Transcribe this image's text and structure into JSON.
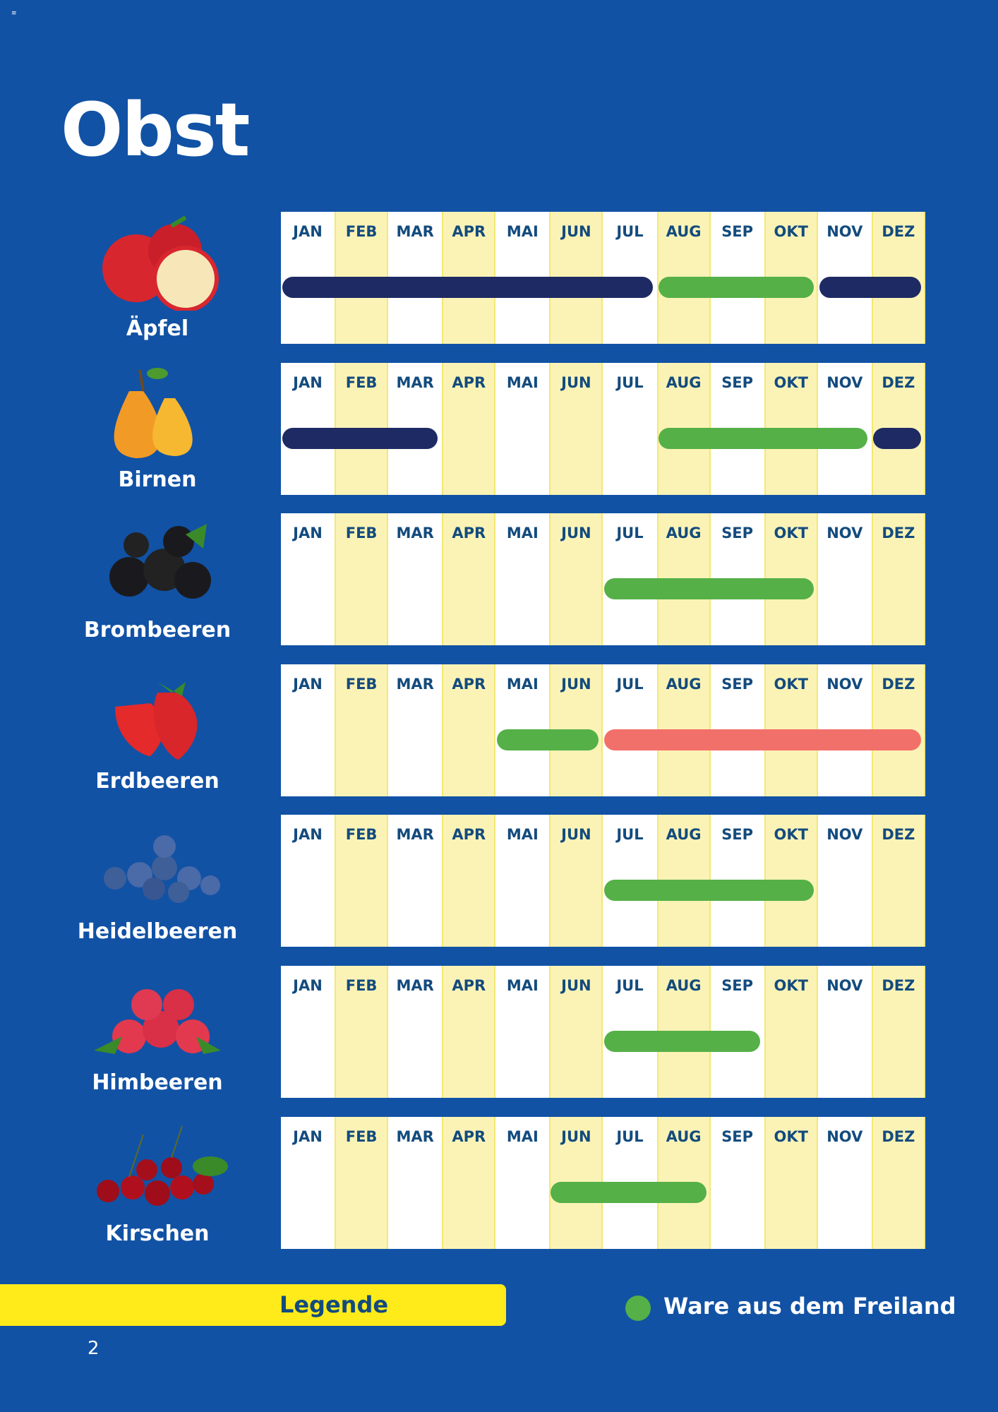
{
  "menu_icon": "hamburger-icon",
  "title": "Obst",
  "colors": {
    "background": "#1152a5",
    "freiland": "#55b047",
    "navy": "#1e2a63",
    "red": "#f2706a",
    "column_alt": "#fbf3b6",
    "legend_bar": "#ffeb1a"
  },
  "chart_data": {
    "type": "table",
    "title": "Obst",
    "months": [
      "JAN",
      "FEB",
      "MAR",
      "APR",
      "MAI",
      "JUN",
      "JUL",
      "AUG",
      "SEP",
      "OKT",
      "NOV",
      "DEZ"
    ],
    "rows": [
      {
        "name": "Äpfel",
        "icon": "apple",
        "bars": [
          {
            "start": "JAN",
            "end": "JUL",
            "color": "#1e2a63"
          },
          {
            "start": "AUG",
            "end": "OKT",
            "color": "#55b047"
          },
          {
            "start": "NOV",
            "end": "DEZ",
            "color": "#1e2a63"
          }
        ]
      },
      {
        "name": "Birnen",
        "icon": "pear",
        "bars": [
          {
            "start": "JAN",
            "end": "MAR",
            "color": "#1e2a63"
          },
          {
            "start": "AUG",
            "end": "NOV",
            "color": "#55b047"
          },
          {
            "start": "DEZ",
            "end": "DEZ",
            "color": "#1e2a63"
          }
        ]
      },
      {
        "name": "Brombeeren",
        "icon": "blackberry",
        "bars": [
          {
            "start": "JUL",
            "end": "OKT",
            "color": "#55b047"
          }
        ]
      },
      {
        "name": "Erdbeeren",
        "icon": "strawberry",
        "bars": [
          {
            "start": "MAI",
            "end": "JUN",
            "color": "#55b047"
          },
          {
            "start": "JUL",
            "end": "DEZ",
            "color": "#f2706a"
          }
        ]
      },
      {
        "name": "Heidelbeeren",
        "icon": "blueberry",
        "bars": [
          {
            "start": "JUL",
            "end": "OKT",
            "color": "#55b047"
          }
        ]
      },
      {
        "name": "Himbeeren",
        "icon": "raspberry",
        "bars": [
          {
            "start": "JUL",
            "end": "SEP",
            "color": "#55b047"
          }
        ]
      },
      {
        "name": "Kirschen",
        "icon": "cherry",
        "bars": [
          {
            "start": "JUN",
            "end": "AUG",
            "color": "#55b047"
          }
        ]
      }
    ],
    "legend": [
      {
        "label": "Ware aus dem Freiland",
        "color": "#55b047"
      }
    ]
  },
  "legend": {
    "title": "Legende",
    "item": "Ware aus dem Freiland"
  },
  "page_number": "2"
}
